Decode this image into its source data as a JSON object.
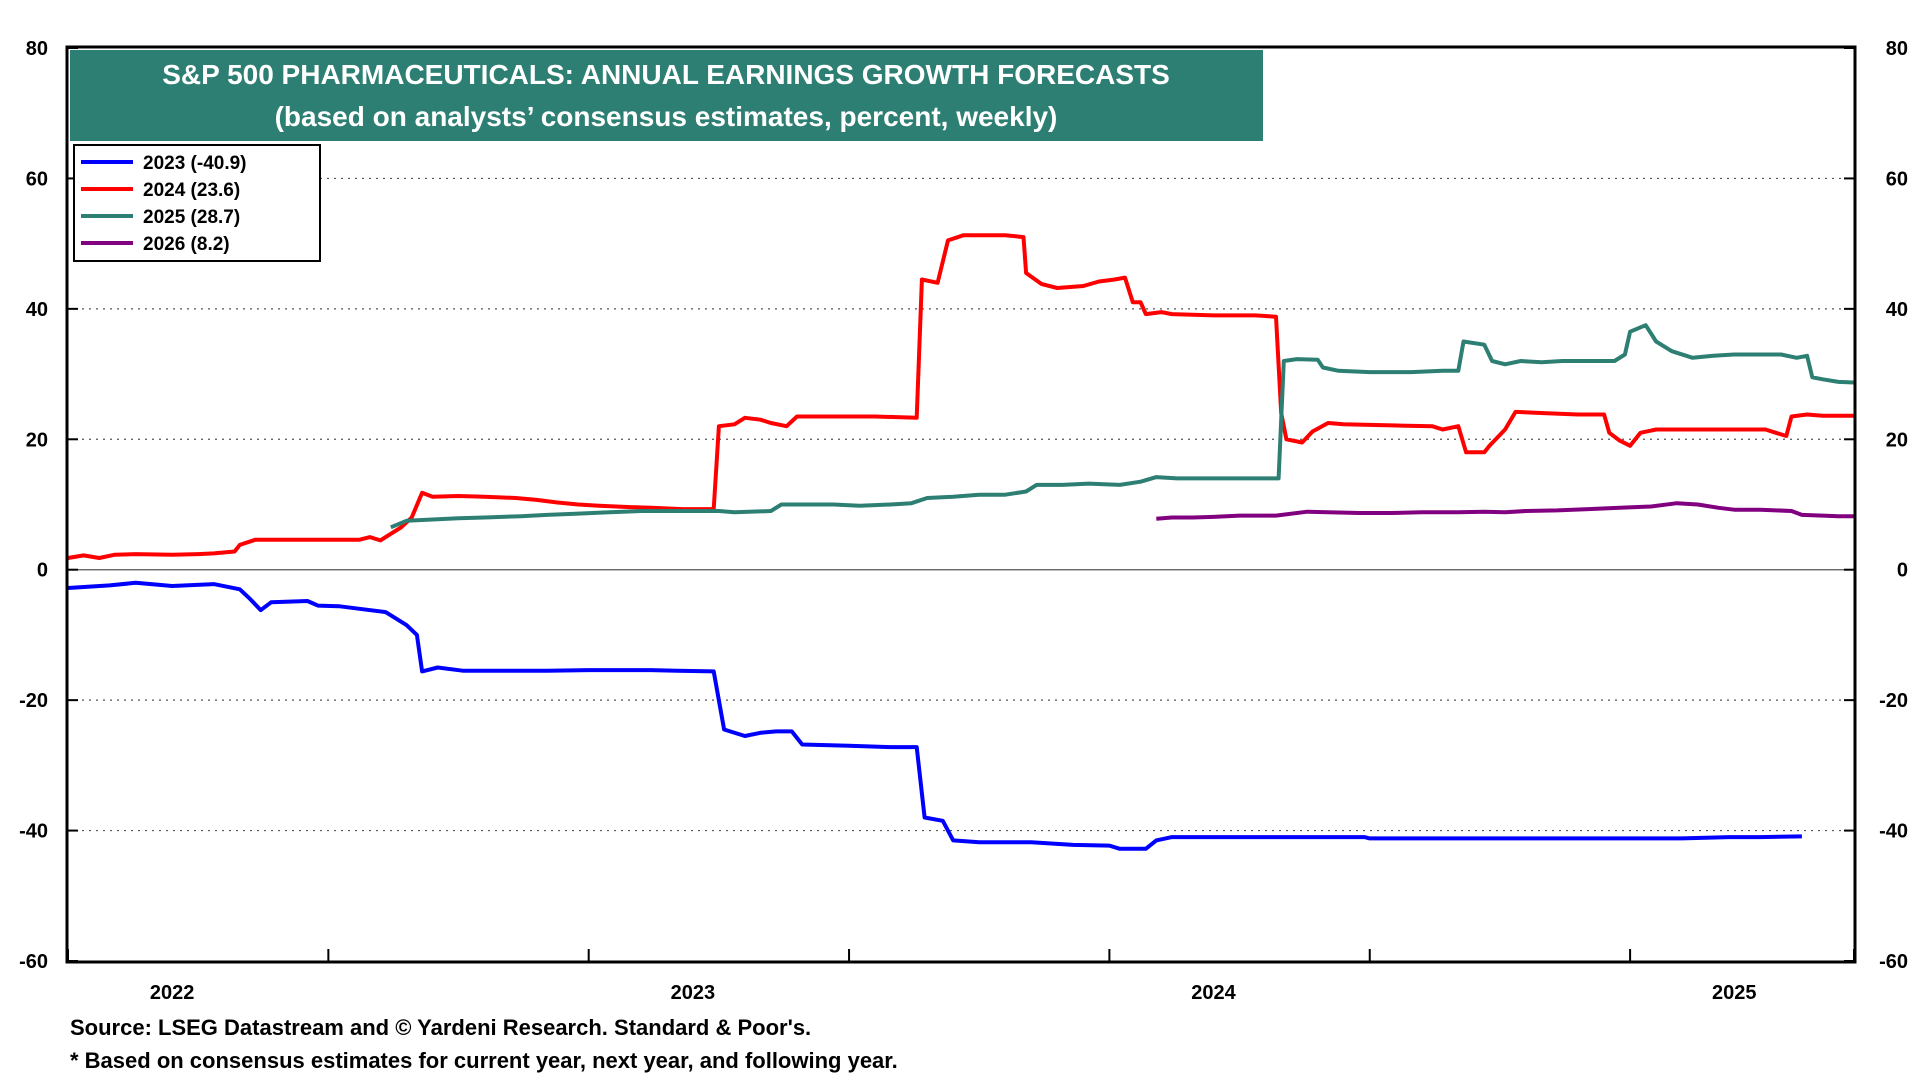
{
  "chart_data": {
    "type": "line",
    "title": "S&P 500 PHARMACEUTICALS: ANNUAL EARNINGS GROWTH FORECASTS",
    "subtitle": "(based on analysts’ consensus estimates, percent, weekly)",
    "ylim": [
      -60,
      80
    ],
    "yticks": [
      -60,
      -40,
      -20,
      0,
      20,
      40,
      60,
      80
    ],
    "xlim": [
      2021.8,
      2025.23
    ],
    "xticks": [
      2021.8,
      2022.3,
      2022.8,
      2023.3,
      2023.8,
      2024.3,
      2024.8,
      2025.23
    ],
    "x_tick_labels": [
      {
        "label": "2022",
        "x": 2022.0
      },
      {
        "label": "2023",
        "x": 2023.0
      },
      {
        "label": "2024",
        "x": 2024.0
      },
      {
        "label": "2025",
        "x": 2025.0
      }
    ],
    "zero_line": true,
    "grid": "horizontal dotted",
    "legend_placement": "top-left",
    "series": [
      {
        "name": "2023 (-40.9)",
        "color": "#0000ff",
        "points": [
          [
            2021.8,
            -2.8
          ],
          [
            2021.88,
            -2.4
          ],
          [
            2021.93,
            -2.0
          ],
          [
            2022.0,
            -2.5
          ],
          [
            2022.08,
            -2.2
          ],
          [
            2022.13,
            -3.0
          ],
          [
            2022.15,
            -4.5
          ],
          [
            2022.17,
            -6.2
          ],
          [
            2022.19,
            -5.0
          ],
          [
            2022.26,
            -4.8
          ],
          [
            2022.28,
            -5.5
          ],
          [
            2022.32,
            -5.6
          ],
          [
            2022.36,
            -6.0
          ],
          [
            2022.41,
            -6.5
          ],
          [
            2022.45,
            -8.5
          ],
          [
            2022.47,
            -10.0
          ],
          [
            2022.48,
            -15.6
          ],
          [
            2022.51,
            -15.0
          ],
          [
            2022.56,
            -15.5
          ],
          [
            2022.61,
            -15.5
          ],
          [
            2022.72,
            -15.5
          ],
          [
            2022.8,
            -15.4
          ],
          [
            2022.86,
            -15.4
          ],
          [
            2022.92,
            -15.4
          ],
          [
            2022.97,
            -15.5
          ],
          [
            2023.04,
            -15.6
          ],
          [
            2023.06,
            -24.5
          ],
          [
            2023.1,
            -25.5
          ],
          [
            2023.13,
            -25.0
          ],
          [
            2023.16,
            -24.8
          ],
          [
            2023.19,
            -24.8
          ],
          [
            2023.21,
            -26.8
          ],
          [
            2023.3,
            -27.0
          ],
          [
            2023.38,
            -27.2
          ],
          [
            2023.43,
            -27.2
          ],
          [
            2023.445,
            -38.0
          ],
          [
            2023.48,
            -38.5
          ],
          [
            2023.5,
            -41.5
          ],
          [
            2023.55,
            -41.8
          ],
          [
            2023.65,
            -41.8
          ],
          [
            2023.73,
            -42.2
          ],
          [
            2023.8,
            -42.3
          ],
          [
            2023.82,
            -42.8
          ],
          [
            2023.87,
            -42.8
          ],
          [
            2023.89,
            -41.5
          ],
          [
            2023.92,
            -41.0
          ],
          [
            2024.0,
            -41.0
          ],
          [
            2024.1,
            -41.0
          ],
          [
            2024.2,
            -41.0
          ],
          [
            2024.29,
            -41.0
          ],
          [
            2024.3,
            -41.2
          ],
          [
            2024.4,
            -41.2
          ],
          [
            2024.5,
            -41.2
          ],
          [
            2024.6,
            -41.2
          ],
          [
            2024.7,
            -41.2
          ],
          [
            2024.8,
            -41.2
          ],
          [
            2024.9,
            -41.2
          ],
          [
            2024.99,
            -41.0
          ],
          [
            2025.05,
            -41.0
          ],
          [
            2025.13,
            -40.9
          ]
        ]
      },
      {
        "name": "2024 (23.6)",
        "color": "#ff0000",
        "points": [
          [
            2021.8,
            1.8
          ],
          [
            2021.83,
            2.2
          ],
          [
            2021.86,
            1.8
          ],
          [
            2021.89,
            2.3
          ],
          [
            2021.93,
            2.4
          ],
          [
            2022.0,
            2.3
          ],
          [
            2022.05,
            2.4
          ],
          [
            2022.08,
            2.5
          ],
          [
            2022.12,
            2.8
          ],
          [
            2022.13,
            3.8
          ],
          [
            2022.16,
            4.6
          ],
          [
            2022.2,
            4.6
          ],
          [
            2022.3,
            4.6
          ],
          [
            2022.36,
            4.6
          ],
          [
            2022.38,
            5.0
          ],
          [
            2022.4,
            4.5
          ],
          [
            2022.42,
            5.5
          ],
          [
            2022.44,
            6.5
          ],
          [
            2022.46,
            8.0
          ],
          [
            2022.48,
            11.8
          ],
          [
            2022.5,
            11.2
          ],
          [
            2022.55,
            11.3
          ],
          [
            2022.6,
            11.2
          ],
          [
            2022.66,
            11.0
          ],
          [
            2022.7,
            10.7
          ],
          [
            2022.74,
            10.3
          ],
          [
            2022.78,
            10.0
          ],
          [
            2022.82,
            9.8
          ],
          [
            2022.88,
            9.6
          ],
          [
            2022.92,
            9.5
          ],
          [
            2022.98,
            9.3
          ],
          [
            2023.04,
            9.3
          ],
          [
            2023.05,
            22.0
          ],
          [
            2023.08,
            22.3
          ],
          [
            2023.1,
            23.3
          ],
          [
            2023.13,
            23.0
          ],
          [
            2023.15,
            22.5
          ],
          [
            2023.18,
            22.0
          ],
          [
            2023.2,
            23.5
          ],
          [
            2023.25,
            23.5
          ],
          [
            2023.3,
            23.5
          ],
          [
            2023.35,
            23.5
          ],
          [
            2023.43,
            23.3
          ],
          [
            2023.44,
            44.5
          ],
          [
            2023.47,
            44.0
          ],
          [
            2023.49,
            50.5
          ],
          [
            2023.52,
            51.3
          ],
          [
            2023.55,
            51.3
          ],
          [
            2023.6,
            51.3
          ],
          [
            2023.635,
            51.0
          ],
          [
            2023.64,
            45.5
          ],
          [
            2023.67,
            43.8
          ],
          [
            2023.7,
            43.2
          ],
          [
            2023.75,
            43.5
          ],
          [
            2023.78,
            44.2
          ],
          [
            2023.81,
            44.5
          ],
          [
            2023.83,
            44.8
          ],
          [
            2023.845,
            41.0
          ],
          [
            2023.86,
            41.0
          ],
          [
            2023.87,
            39.2
          ],
          [
            2023.9,
            39.5
          ],
          [
            2023.92,
            39.2
          ],
          [
            2024.0,
            39.0
          ],
          [
            2024.08,
            39.0
          ],
          [
            2024.12,
            38.8
          ],
          [
            2024.13,
            24.0
          ],
          [
            2024.14,
            20.0
          ],
          [
            2024.17,
            19.5
          ],
          [
            2024.19,
            21.2
          ],
          [
            2024.22,
            22.5
          ],
          [
            2024.25,
            22.3
          ],
          [
            2024.3,
            22.2
          ],
          [
            2024.36,
            22.1
          ],
          [
            2024.42,
            22.0
          ],
          [
            2024.44,
            21.5
          ],
          [
            2024.47,
            22.0
          ],
          [
            2024.485,
            18.0
          ],
          [
            2024.52,
            18.0
          ],
          [
            2024.53,
            19.0
          ],
          [
            2024.56,
            21.5
          ],
          [
            2024.58,
            24.2
          ],
          [
            2024.64,
            24.0
          ],
          [
            2024.7,
            23.8
          ],
          [
            2024.75,
            23.8
          ],
          [
            2024.76,
            21.0
          ],
          [
            2024.78,
            19.8
          ],
          [
            2024.8,
            19.0
          ],
          [
            2024.82,
            21.0
          ],
          [
            2024.85,
            21.5
          ],
          [
            2024.9,
            21.5
          ],
          [
            2025.0,
            21.5
          ],
          [
            2025.06,
            21.5
          ],
          [
            2025.08,
            21.0
          ],
          [
            2025.1,
            20.5
          ],
          [
            2025.11,
            23.5
          ],
          [
            2025.14,
            23.8
          ],
          [
            2025.17,
            23.6
          ],
          [
            2025.23,
            23.6
          ]
        ]
      },
      {
        "name": "2025 (28.7)",
        "color": "#2e7f73",
        "points": [
          [
            2022.42,
            6.5
          ],
          [
            2022.45,
            7.5
          ],
          [
            2022.5,
            7.7
          ],
          [
            2022.55,
            7.9
          ],
          [
            2022.6,
            8.0
          ],
          [
            2022.67,
            8.2
          ],
          [
            2022.72,
            8.4
          ],
          [
            2022.78,
            8.6
          ],
          [
            2022.84,
            8.8
          ],
          [
            2022.9,
            9.0
          ],
          [
            2023.0,
            9.0
          ],
          [
            2023.05,
            9.0
          ],
          [
            2023.08,
            8.8
          ],
          [
            2023.15,
            9.0
          ],
          [
            2023.17,
            10.0
          ],
          [
            2023.22,
            10.0
          ],
          [
            2023.27,
            10.0
          ],
          [
            2023.32,
            9.8
          ],
          [
            2023.38,
            10.0
          ],
          [
            2023.42,
            10.2
          ],
          [
            2023.45,
            11.0
          ],
          [
            2023.5,
            11.2
          ],
          [
            2023.55,
            11.5
          ],
          [
            2023.6,
            11.5
          ],
          [
            2023.64,
            12.0
          ],
          [
            2023.66,
            13.0
          ],
          [
            2023.71,
            13.0
          ],
          [
            2023.76,
            13.2
          ],
          [
            2023.82,
            13.0
          ],
          [
            2023.86,
            13.5
          ],
          [
            2023.89,
            14.2
          ],
          [
            2023.93,
            14.0
          ],
          [
            2024.0,
            14.0
          ],
          [
            2024.05,
            14.0
          ],
          [
            2024.125,
            14.0
          ],
          [
            2024.135,
            32.0
          ],
          [
            2024.16,
            32.3
          ],
          [
            2024.2,
            32.2
          ],
          [
            2024.21,
            31.0
          ],
          [
            2024.24,
            30.5
          ],
          [
            2024.3,
            30.3
          ],
          [
            2024.38,
            30.3
          ],
          [
            2024.44,
            30.5
          ],
          [
            2024.47,
            30.5
          ],
          [
            2024.48,
            35.0
          ],
          [
            2024.52,
            34.5
          ],
          [
            2024.535,
            32.0
          ],
          [
            2024.56,
            31.5
          ],
          [
            2024.59,
            32.0
          ],
          [
            2024.63,
            31.8
          ],
          [
            2024.67,
            32.0
          ],
          [
            2024.72,
            32.0
          ],
          [
            2024.77,
            32.0
          ],
          [
            2024.79,
            33.0
          ],
          [
            2024.8,
            36.5
          ],
          [
            2024.83,
            37.5
          ],
          [
            2024.85,
            35.0
          ],
          [
            2024.88,
            33.5
          ],
          [
            2024.92,
            32.5
          ],
          [
            2024.96,
            32.8
          ],
          [
            2025.0,
            33.0
          ],
          [
            2025.05,
            33.0
          ],
          [
            2025.09,
            33.0
          ],
          [
            2025.12,
            32.5
          ],
          [
            2025.14,
            32.8
          ],
          [
            2025.15,
            29.5
          ],
          [
            2025.17,
            29.2
          ],
          [
            2025.2,
            28.8
          ],
          [
            2025.23,
            28.7
          ]
        ]
      },
      {
        "name": "2026 (8.2)",
        "color": "#800080",
        "points": [
          [
            2023.89,
            7.8
          ],
          [
            2023.92,
            8.0
          ],
          [
            2023.96,
            8.0
          ],
          [
            2024.0,
            8.1
          ],
          [
            2024.05,
            8.3
          ],
          [
            2024.12,
            8.3
          ],
          [
            2024.18,
            8.9
          ],
          [
            2024.22,
            8.8
          ],
          [
            2024.28,
            8.7
          ],
          [
            2024.34,
            8.7
          ],
          [
            2024.4,
            8.8
          ],
          [
            2024.47,
            8.8
          ],
          [
            2024.52,
            8.9
          ],
          [
            2024.56,
            8.8
          ],
          [
            2024.6,
            9.0
          ],
          [
            2024.66,
            9.1
          ],
          [
            2024.72,
            9.3
          ],
          [
            2024.78,
            9.5
          ],
          [
            2024.84,
            9.7
          ],
          [
            2024.89,
            10.2
          ],
          [
            2024.93,
            10.0
          ],
          [
            2024.97,
            9.5
          ],
          [
            2025.0,
            9.2
          ],
          [
            2025.05,
            9.2
          ],
          [
            2025.11,
            9.0
          ],
          [
            2025.13,
            8.4
          ],
          [
            2025.17,
            8.3
          ],
          [
            2025.2,
            8.2
          ],
          [
            2025.23,
            8.2
          ]
        ]
      }
    ]
  },
  "footer": {
    "source": "Source: LSEG Datastream and © Yardeni Research. Standard & Poor's.",
    "note": "* Based on consensus estimates for current year, next year, and following year."
  }
}
